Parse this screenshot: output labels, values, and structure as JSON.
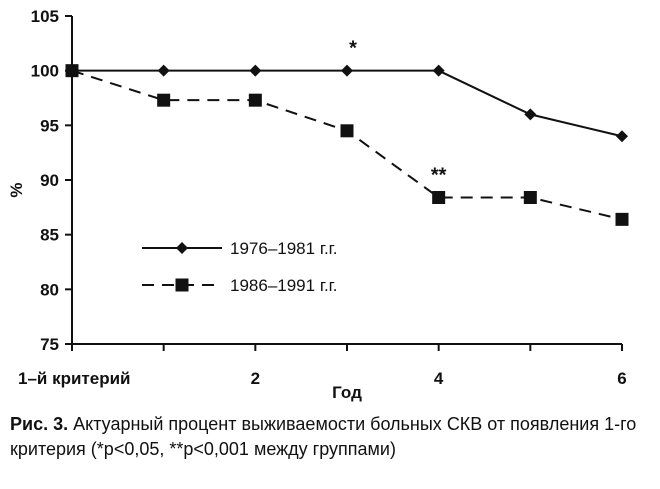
{
  "chart_data": {
    "type": "line",
    "x": [
      0,
      1,
      2,
      3,
      4,
      5,
      6
    ],
    "x_tick_labels": [
      "1–й критерий",
      "",
      "2",
      "",
      "4",
      "",
      "6"
    ],
    "xlabel": "Год",
    "ylabel": "%",
    "ylim": [
      75,
      105
    ],
    "yticks": [
      "75",
      "80",
      "85",
      "90",
      "95",
      "100",
      "105"
    ],
    "grid": false,
    "legend_position": "lower-left",
    "series": [
      {
        "name": "1976–1981 г.г.",
        "marker": "diamond",
        "line_style": "solid",
        "values": [
          100,
          100,
          100,
          100,
          100,
          96,
          94
        ]
      },
      {
        "name": "1986–1991 г.г.",
        "marker": "square",
        "line_style": "dashed",
        "values": [
          100,
          97.3,
          97.3,
          94.5,
          88.4,
          88.4,
          86.4
        ]
      }
    ],
    "annotations": [
      {
        "text": "*",
        "x": 3,
        "y": 100
      },
      {
        "text": "**",
        "x": 4,
        "y": 88.4
      }
    ]
  },
  "caption": {
    "label": "Рис. 3.",
    "text": " Актуарный процент выживаемости больных СКВ от появления 1-го критерия (*p<0,05, **p<0,001 между группами)"
  }
}
